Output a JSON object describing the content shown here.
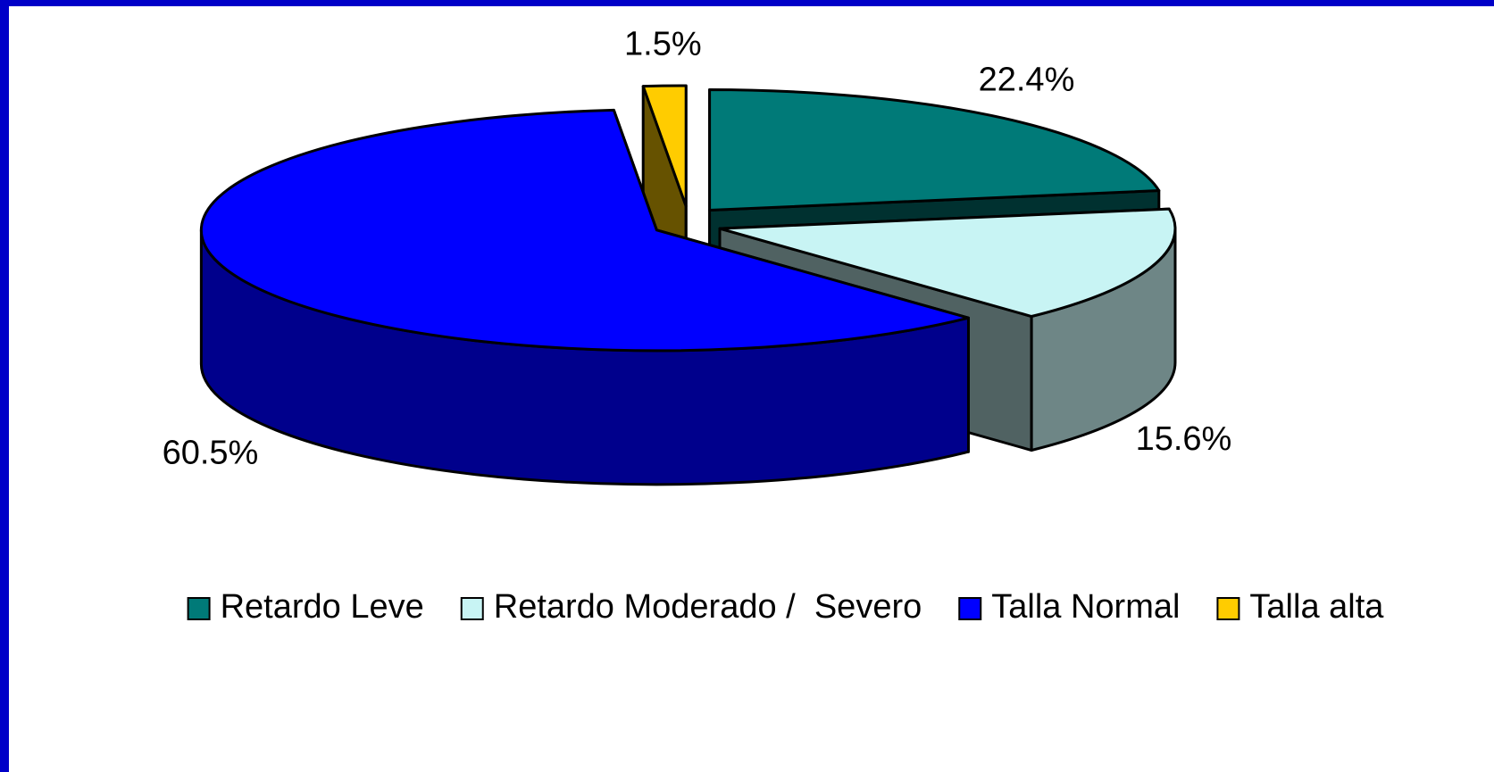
{
  "chart_data": {
    "type": "pie",
    "categories": [
      "Retardo Leve",
      "Retardo Moderado /  Severo",
      "Talla Normal",
      "Talla alta"
    ],
    "values": [
      22.4,
      15.6,
      60.5,
      1.5
    ],
    "value_labels": [
      "22.4%",
      "15.6%",
      "60.5%",
      "1.5%"
    ],
    "colors": [
      "#007a78",
      "#c8f4f4",
      "#0000ff",
      "#ffcc00"
    ],
    "legend": "bottom"
  }
}
